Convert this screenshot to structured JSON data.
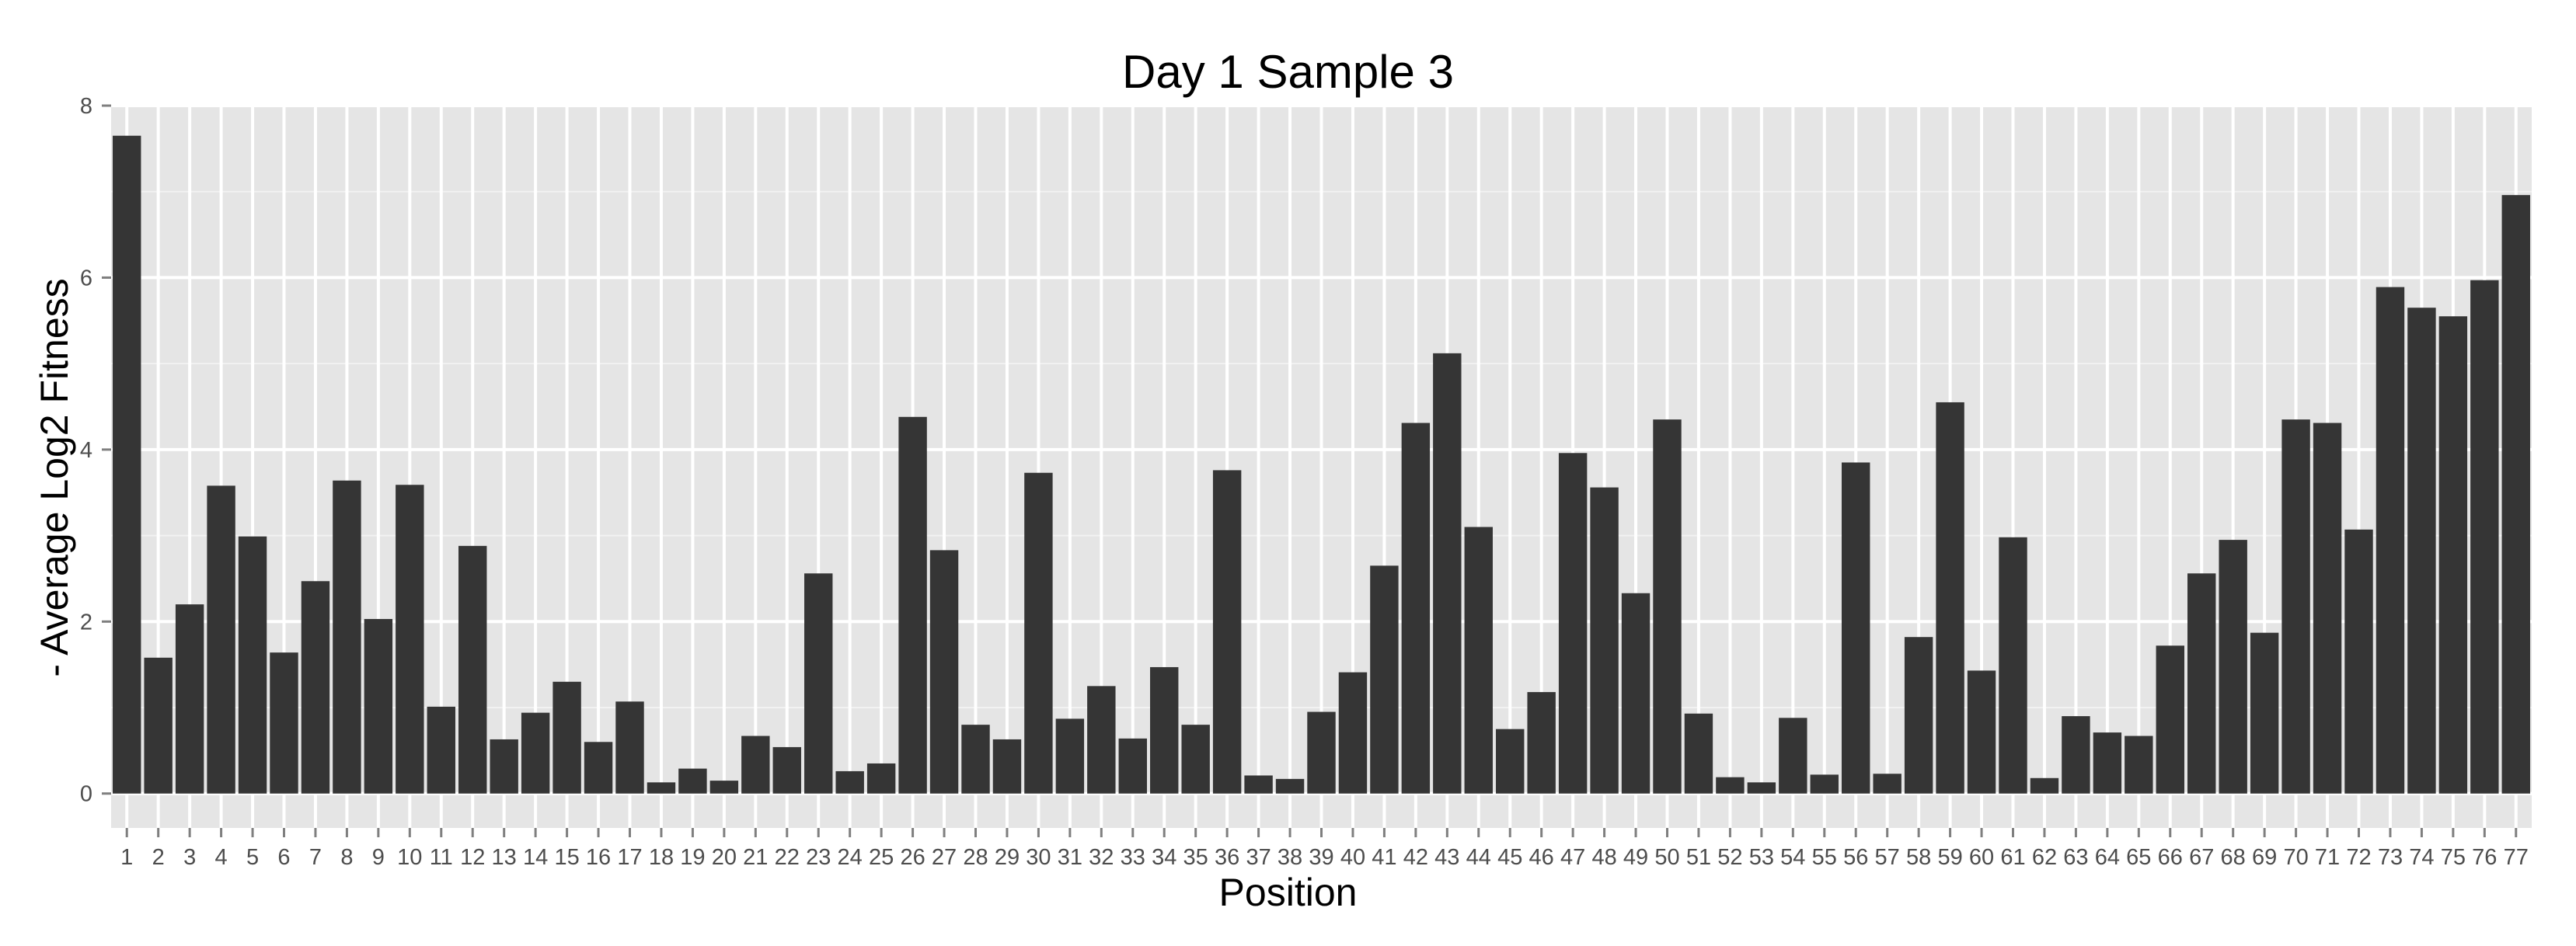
{
  "chart_data": {
    "type": "bar",
    "title": "Day 1 Sample 3",
    "xlabel": "Position",
    "ylabel": "- Average Log2 Fitness",
    "ylim": [
      -0.4,
      8
    ],
    "yticks": [
      0,
      2,
      4,
      6,
      8
    ],
    "grid": true,
    "legend": "none",
    "colors": {
      "bar": "#353535",
      "panel": "#e5e5e5",
      "grid_major": "#ffffff",
      "grid_minor": "#f2f2f2",
      "tick_text": "#4d4d4d"
    },
    "categories": [
      "1",
      "2",
      "3",
      "4",
      "5",
      "6",
      "7",
      "8",
      "9",
      "10",
      "11",
      "12",
      "13",
      "14",
      "15",
      "16",
      "17",
      "18",
      "19",
      "20",
      "21",
      "22",
      "23",
      "24",
      "25",
      "26",
      "27",
      "28",
      "29",
      "30",
      "31",
      "32",
      "33",
      "34",
      "35",
      "36",
      "37",
      "38",
      "39",
      "40",
      "41",
      "42",
      "43",
      "44",
      "45",
      "46",
      "47",
      "48",
      "49",
      "50",
      "51",
      "52",
      "53",
      "54",
      "55",
      "56",
      "57",
      "58",
      "59",
      "60",
      "61",
      "62",
      "63",
      "64",
      "65",
      "66",
      "67",
      "68",
      "69",
      "70",
      "71",
      "72",
      "73",
      "74",
      "75",
      "76",
      "77"
    ],
    "values": [
      7.65,
      1.58,
      2.2,
      3.58,
      2.99,
      1.64,
      2.47,
      3.64,
      2.03,
      3.59,
      1.01,
      2.88,
      0.63,
      0.94,
      1.3,
      0.6,
      1.07,
      0.13,
      0.29,
      0.15,
      0.67,
      0.54,
      2.56,
      0.26,
      0.35,
      4.38,
      2.83,
      0.8,
      0.63,
      3.73,
      0.87,
      1.25,
      0.64,
      1.47,
      0.8,
      3.76,
      0.21,
      0.17,
      0.95,
      1.41,
      2.65,
      4.31,
      5.12,
      3.1,
      0.75,
      1.18,
      3.96,
      3.56,
      2.33,
      4.35,
      0.93,
      0.19,
      0.13,
      0.88,
      0.22,
      3.85,
      0.23,
      1.82,
      4.55,
      1.43,
      2.98,
      0.18,
      0.9,
      0.71,
      0.67,
      1.72,
      2.56,
      2.95,
      1.87,
      4.35,
      4.31,
      3.07,
      5.89,
      5.65,
      5.55,
      5.97,
      6.96
    ]
  }
}
